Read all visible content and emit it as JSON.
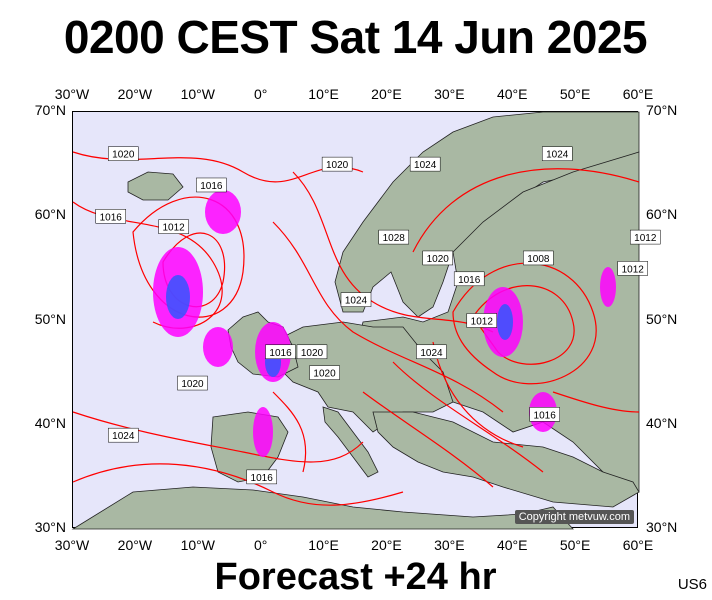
{
  "title": "0200 CEST Sat 14 Jun 2025",
  "footer": "Forecast +24 hr",
  "model_code": "US6",
  "copyright": "Copyright metvuw.com",
  "map": {
    "lon_range": [
      -30,
      60
    ],
    "lat_range": [
      30,
      70
    ],
    "lon_ticks": [
      "30°W",
      "20°W",
      "10°W",
      "0°",
      "10°E",
      "20°E",
      "30°E",
      "40°E",
      "50°E",
      "60°E"
    ],
    "lat_ticks": [
      "70°N",
      "60°N",
      "50°N",
      "40°N",
      "30°N"
    ],
    "isobar_color": "#ff0000",
    "ocean_color": "#e6e6fa",
    "land_color": "#a9b8a3",
    "isobar_labels": [
      {
        "text": "1020",
        "lon": -22,
        "lat": 66
      },
      {
        "text": "1016",
        "lon": -8,
        "lat": 63
      },
      {
        "text": "1016",
        "lon": -24,
        "lat": 60
      },
      {
        "text": "1012",
        "lon": -14,
        "lat": 59
      },
      {
        "text": "1020",
        "lon": 12,
        "lat": 65
      },
      {
        "text": "1024",
        "lon": 26,
        "lat": 65
      },
      {
        "text": "1024",
        "lon": 47,
        "lat": 66
      },
      {
        "text": "1028",
        "lon": 21,
        "lat": 58
      },
      {
        "text": "1020",
        "lon": 28,
        "lat": 56
      },
      {
        "text": "1016",
        "lon": 33,
        "lat": 54
      },
      {
        "text": "1008",
        "lon": 44,
        "lat": 56
      },
      {
        "text": "1012",
        "lon": 61,
        "lat": 58
      },
      {
        "text": "1012",
        "lon": 59,
        "lat": 55
      },
      {
        "text": "1024",
        "lon": 15,
        "lat": 52
      },
      {
        "text": "1012",
        "lon": 35,
        "lat": 50
      },
      {
        "text": "1024",
        "lon": 27,
        "lat": 47
      },
      {
        "text": "1016",
        "lon": 3,
        "lat": 47
      },
      {
        "text": "1020",
        "lon": 8,
        "lat": 47
      },
      {
        "text": "1020",
        "lon": 10,
        "lat": 45
      },
      {
        "text": "1020",
        "lon": -11,
        "lat": 44
      },
      {
        "text": "1016",
        "lon": 45,
        "lat": 41
      },
      {
        "text": "1024",
        "lon": -22,
        "lat": 39
      },
      {
        "text": "1016",
        "lon": 0,
        "lat": 35
      }
    ]
  }
}
